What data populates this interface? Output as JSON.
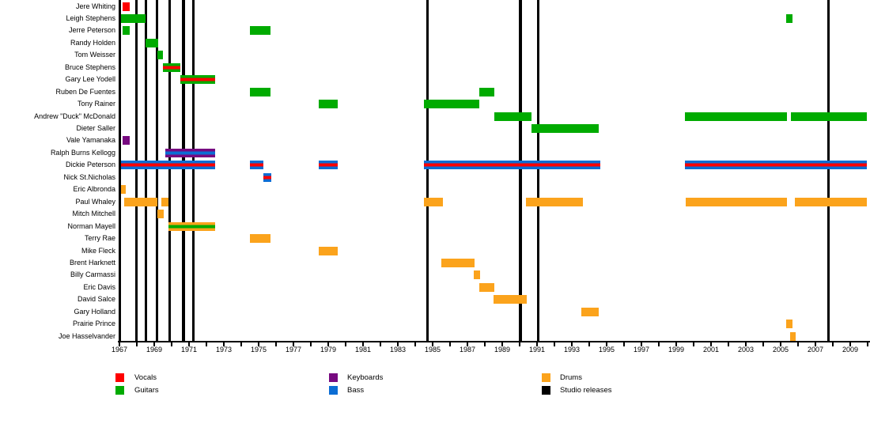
{
  "chart_data": {
    "type": "timeline",
    "title": "",
    "axis": {
      "xlim": [
        1967,
        2010
      ],
      "tick_label_years": [
        1967,
        1969,
        1971,
        1973,
        1975,
        1977,
        1979,
        1981,
        1983,
        1985,
        1987,
        1989,
        1991,
        1993,
        1995,
        1997,
        1999,
        2001,
        2003,
        2005,
        2007,
        2009
      ]
    },
    "legend": [
      {
        "role": "vocals",
        "label": "Vocals",
        "color": "#FE0000"
      },
      {
        "role": "guitars",
        "label": "Guitars",
        "color": "#00AB00"
      },
      {
        "role": "keyboards",
        "label": "Keyboards",
        "color": "#770980"
      },
      {
        "role": "bass",
        "label": "Bass",
        "color": "#0C6DD4"
      },
      {
        "role": "drums",
        "label": "Drums",
        "color": "#FBA31C"
      },
      {
        "role": "studio",
        "label": "Studio releases",
        "color": "#000000"
      }
    ],
    "studio_release_years": [
      1967.98,
      1968.52,
      1969.16,
      1969.89,
      1970.68,
      1971.25,
      1984.7,
      1990.05,
      1991.07,
      2007.75
    ],
    "members": [
      {
        "name": "Jere Whiting",
        "periods": [
          {
            "start": 1967.2,
            "end": 1967.6,
            "roles": [
              "vocals"
            ]
          }
        ]
      },
      {
        "name": "Leigh Stephens",
        "periods": [
          {
            "start": 1967.0,
            "end": 1968.5,
            "roles": [
              "guitars"
            ]
          },
          {
            "start": 2005.32,
            "end": 2005.68,
            "roles": [
              "guitars"
            ]
          }
        ]
      },
      {
        "name": "Jerre Peterson",
        "periods": [
          {
            "start": 1967.2,
            "end": 1967.6,
            "roles": [
              "guitars"
            ]
          },
          {
            "start": 1974.5,
            "end": 1975.7,
            "roles": [
              "guitars"
            ]
          }
        ]
      },
      {
        "name": "Randy Holden",
        "periods": [
          {
            "start": 1968.5,
            "end": 1969.23,
            "roles": [
              "guitars"
            ]
          }
        ]
      },
      {
        "name": "Tom Weisser",
        "periods": [
          {
            "start": 1969.18,
            "end": 1969.5,
            "roles": [
              "guitars"
            ]
          }
        ]
      },
      {
        "name": "Bruce Stephens",
        "periods": [
          {
            "start": 1969.5,
            "end": 1970.48,
            "roles": [
              "guitars",
              "vocals"
            ]
          }
        ]
      },
      {
        "name": "Gary Lee Yodell",
        "periods": [
          {
            "start": 1970.48,
            "end": 1972.5,
            "roles": [
              "guitars",
              "vocals"
            ]
          }
        ]
      },
      {
        "name": "Ruben De Fuentes",
        "periods": [
          {
            "start": 1974.5,
            "end": 1975.7,
            "roles": [
              "guitars"
            ]
          },
          {
            "start": 1987.68,
            "end": 1988.55,
            "roles": [
              "guitars"
            ]
          }
        ]
      },
      {
        "name": "Tony Rainer",
        "periods": [
          {
            "start": 1978.45,
            "end": 1979.55,
            "roles": [
              "guitars"
            ]
          },
          {
            "start": 1984.5,
            "end": 1987.68,
            "roles": [
              "guitars"
            ]
          }
        ]
      },
      {
        "name": "Andrew \"Duck\" McDonald",
        "periods": [
          {
            "start": 1988.55,
            "end": 1990.68,
            "roles": [
              "guitars"
            ]
          },
          {
            "start": 1999.5,
            "end": 2005.36,
            "roles": [
              "guitars"
            ]
          },
          {
            "start": 2005.6,
            "end": 2009.95,
            "roles": [
              "guitars"
            ]
          }
        ]
      },
      {
        "name": "Dieter Saller",
        "periods": [
          {
            "start": 1990.68,
            "end": 1994.55,
            "roles": [
              "guitars"
            ]
          }
        ]
      },
      {
        "name": "Vale Yamanaka",
        "periods": [
          {
            "start": 1967.2,
            "end": 1967.6,
            "roles": [
              "keyboards"
            ]
          }
        ]
      },
      {
        "name": "Ralph Burns Kellogg",
        "periods": [
          {
            "start": 1969.64,
            "end": 1972.5,
            "roles": [
              "keyboards",
              "bass"
            ]
          }
        ]
      },
      {
        "name": "Dickie Peterson",
        "periods": [
          {
            "start": 1967.05,
            "end": 1972.5,
            "roles": [
              "bass",
              "vocals"
            ]
          },
          {
            "start": 1974.5,
            "end": 1975.27,
            "roles": [
              "bass",
              "vocals"
            ]
          },
          {
            "start": 1978.45,
            "end": 1979.55,
            "roles": [
              "bass",
              "vocals"
            ]
          },
          {
            "start": 1984.5,
            "end": 1994.64,
            "roles": [
              "bass",
              "vocals"
            ]
          },
          {
            "start": 1999.5,
            "end": 2009.95,
            "roles": [
              "bass",
              "vocals"
            ]
          }
        ]
      },
      {
        "name": "Nick St.Nicholas",
        "periods": [
          {
            "start": 1975.27,
            "end": 1975.73,
            "roles": [
              "bass",
              "vocals"
            ]
          }
        ]
      },
      {
        "name": "Eric Albronda",
        "periods": [
          {
            "start": 1967.0,
            "end": 1967.36,
            "roles": [
              "drums"
            ]
          }
        ]
      },
      {
        "name": "Paul Whaley",
        "periods": [
          {
            "start": 1967.27,
            "end": 1969.18,
            "roles": [
              "drums"
            ]
          },
          {
            "start": 1969.41,
            "end": 1969.82,
            "roles": [
              "drums"
            ]
          },
          {
            "start": 1984.5,
            "end": 1985.59,
            "roles": [
              "drums"
            ]
          },
          {
            "start": 1990.36,
            "end": 1993.64,
            "roles": [
              "drums"
            ]
          },
          {
            "start": 1999.55,
            "end": 2005.36,
            "roles": [
              "drums"
            ]
          },
          {
            "start": 2005.82,
            "end": 2009.95,
            "roles": [
              "drums"
            ]
          }
        ]
      },
      {
        "name": "Mitch Mitchell",
        "periods": [
          {
            "start": 1969.18,
            "end": 1969.55,
            "roles": [
              "drums"
            ]
          }
        ]
      },
      {
        "name": "Norman Mayell",
        "periods": [
          {
            "start": 1969.82,
            "end": 1972.5,
            "roles": [
              "drums",
              "guitars"
            ]
          }
        ]
      },
      {
        "name": "Terry Rae",
        "periods": [
          {
            "start": 1974.5,
            "end": 1975.7,
            "roles": [
              "drums"
            ]
          }
        ]
      },
      {
        "name": "Mike Fleck",
        "periods": [
          {
            "start": 1978.45,
            "end": 1979.55,
            "roles": [
              "drums"
            ]
          }
        ]
      },
      {
        "name": "Brent Harknett",
        "periods": [
          {
            "start": 1985.5,
            "end": 1987.41,
            "roles": [
              "drums"
            ]
          }
        ]
      },
      {
        "name": "Billy Carmassi",
        "periods": [
          {
            "start": 1987.36,
            "end": 1987.73,
            "roles": [
              "drums"
            ]
          }
        ]
      },
      {
        "name": "Eric Davis",
        "periods": [
          {
            "start": 1987.68,
            "end": 1988.55,
            "roles": [
              "drums"
            ]
          }
        ]
      },
      {
        "name": "David Salce",
        "periods": [
          {
            "start": 1988.5,
            "end": 1990.41,
            "roles": [
              "drums"
            ]
          }
        ]
      },
      {
        "name": "Gary Holland",
        "periods": [
          {
            "start": 1993.55,
            "end": 1994.55,
            "roles": [
              "drums"
            ]
          }
        ]
      },
      {
        "name": "Prairie Prince",
        "periods": [
          {
            "start": 2005.32,
            "end": 2005.68,
            "roles": [
              "drums"
            ]
          }
        ]
      },
      {
        "name": "Joe Hasselvander",
        "periods": [
          {
            "start": 2005.55,
            "end": 2005.86,
            "roles": [
              "drums"
            ]
          }
        ]
      }
    ]
  }
}
